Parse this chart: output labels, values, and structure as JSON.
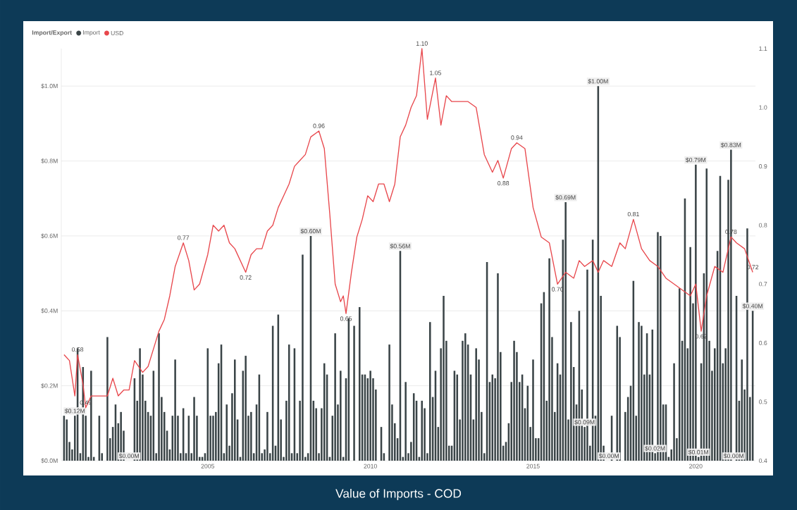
{
  "chart_data": {
    "type": "bar",
    "title": "Value of Imports - COD",
    "legend_title": "Import/Export",
    "legend": "top left",
    "grid": "y",
    "xlim": [
      "2000-07",
      "2021-11"
    ],
    "xticks": [
      "2005",
      "2010",
      "2015",
      "2020"
    ],
    "ylim": [
      0,
      1.1
    ],
    "yticks": [
      {
        "value": 0,
        "label": "$0.0M"
      },
      {
        "value": 0.2,
        "label": "$0.2M"
      },
      {
        "value": 0.4,
        "label": "$0.4M"
      },
      {
        "value": 0.6,
        "label": "$0.6M"
      },
      {
        "value": 0.8,
        "label": "$0.8M"
      },
      {
        "value": 1.0,
        "label": "$1.0M"
      }
    ],
    "y2lim": [
      0.4,
      1.1
    ],
    "y2ticks": [
      {
        "value": 0.4,
        "label": "0.4"
      },
      {
        "value": 0.5,
        "label": "0.5"
      },
      {
        "value": 0.6,
        "label": "0.6"
      },
      {
        "value": 0.7,
        "label": "0.7"
      },
      {
        "value": 0.8,
        "label": "0.8"
      },
      {
        "value": 0.9,
        "label": "0.9"
      },
      {
        "value": 1.0,
        "label": "1.0"
      },
      {
        "value": 1.1,
        "label": "1.1"
      }
    ],
    "x": [
      "2000-08",
      "2000-09",
      "2000-10",
      "2000-11",
      "2000-12",
      "2001-01",
      "2001-02",
      "2001-03",
      "2001-04",
      "2001-05",
      "2001-06",
      "2001-07",
      "2001-08",
      "2001-09",
      "2001-10",
      "2001-11",
      "2001-12",
      "2002-01",
      "2002-02",
      "2002-03",
      "2002-04",
      "2002-05",
      "2002-06",
      "2002-07",
      "2002-08",
      "2002-09",
      "2002-10",
      "2002-11",
      "2002-12",
      "2003-01",
      "2003-02",
      "2003-03",
      "2003-04",
      "2003-05",
      "2003-06",
      "2003-07",
      "2003-08",
      "2003-09",
      "2003-10",
      "2003-11",
      "2003-12",
      "2004-01",
      "2004-02",
      "2004-03",
      "2004-04",
      "2004-05",
      "2004-06",
      "2004-07",
      "2004-08",
      "2004-09",
      "2004-10",
      "2004-11",
      "2004-12",
      "2005-01",
      "2005-02",
      "2005-03",
      "2005-04",
      "2005-05",
      "2005-06",
      "2005-07",
      "2005-08",
      "2005-09",
      "2005-10",
      "2005-11",
      "2005-12",
      "2006-01",
      "2006-02",
      "2006-03",
      "2006-04",
      "2006-05",
      "2006-06",
      "2006-07",
      "2006-08",
      "2006-09",
      "2006-10",
      "2006-11",
      "2006-12",
      "2007-01",
      "2007-02",
      "2007-03",
      "2007-04",
      "2007-05",
      "2007-06",
      "2007-07",
      "2007-08",
      "2007-09",
      "2007-10",
      "2007-11",
      "2007-12",
      "2008-01",
      "2008-02",
      "2008-03",
      "2008-04",
      "2008-05",
      "2008-06",
      "2008-07",
      "2008-08",
      "2008-09",
      "2008-10",
      "2008-11",
      "2008-12",
      "2009-01",
      "2009-02",
      "2009-03",
      "2009-04",
      "2009-05",
      "2009-06",
      "2009-07",
      "2009-08",
      "2009-09",
      "2009-10",
      "2009-11",
      "2009-12",
      "2010-01",
      "2010-02",
      "2010-03",
      "2010-04",
      "2010-05",
      "2010-06",
      "2010-07",
      "2010-08",
      "2010-09",
      "2010-10",
      "2010-11",
      "2010-12",
      "2011-01",
      "2011-02",
      "2011-03",
      "2011-04",
      "2011-05",
      "2011-06",
      "2011-07",
      "2011-08",
      "2011-09",
      "2011-10",
      "2011-11",
      "2011-12",
      "2012-01",
      "2012-02",
      "2012-03",
      "2012-04",
      "2012-05",
      "2012-06",
      "2012-07",
      "2012-08",
      "2012-09",
      "2012-10",
      "2012-11",
      "2012-12",
      "2013-01",
      "2013-02",
      "2013-03",
      "2013-04",
      "2013-05",
      "2013-06",
      "2013-07",
      "2013-08",
      "2013-09",
      "2013-10",
      "2013-11",
      "2013-12",
      "2014-01",
      "2014-02",
      "2014-03",
      "2014-04",
      "2014-05",
      "2014-06",
      "2014-07",
      "2014-08",
      "2014-09",
      "2014-10",
      "2014-11",
      "2014-12",
      "2015-01",
      "2015-02",
      "2015-03",
      "2015-04",
      "2015-05",
      "2015-06",
      "2015-07",
      "2015-08",
      "2015-09",
      "2015-10",
      "2015-11",
      "2015-12",
      "2016-01",
      "2016-02",
      "2016-03",
      "2016-04",
      "2016-05",
      "2016-06",
      "2016-07",
      "2016-08",
      "2016-09",
      "2016-10",
      "2016-11",
      "2016-12",
      "2017-01",
      "2017-02",
      "2017-03",
      "2017-04",
      "2017-05",
      "2017-06",
      "2017-07",
      "2017-08",
      "2017-09",
      "2017-10",
      "2017-11",
      "2017-12",
      "2018-01",
      "2018-02",
      "2018-03",
      "2018-04",
      "2018-05",
      "2018-06",
      "2018-07",
      "2018-08",
      "2018-09",
      "2018-10",
      "2018-11",
      "2018-12",
      "2019-01",
      "2019-02",
      "2019-03",
      "2019-04",
      "2019-05",
      "2019-06",
      "2019-07",
      "2019-08",
      "2019-09",
      "2019-10",
      "2019-11",
      "2019-12",
      "2020-01",
      "2020-02",
      "2020-03",
      "2020-04",
      "2020-05",
      "2020-06",
      "2020-07",
      "2020-08",
      "2020-09",
      "2020-10",
      "2020-11",
      "2020-12",
      "2021-01",
      "2021-02",
      "2021-03",
      "2021-04",
      "2021-05",
      "2021-06",
      "2021-07",
      "2021-08",
      "2021-09",
      "2021-10"
    ],
    "series": [
      {
        "name": "Import",
        "color": "#3a4447",
        "values": [
          0.12,
          0.11,
          0.05,
          0.03,
          0.12,
          0.3,
          0.02,
          0.25,
          0.12,
          0.01,
          0.24,
          0.01,
          0.0,
          0.12,
          0.02,
          0.0,
          0.33,
          0.06,
          0.09,
          0.15,
          0.1,
          0.13,
          0.08,
          0.0,
          0.0,
          0.0,
          0.22,
          0.16,
          0.3,
          0.23,
          0.16,
          0.13,
          0.12,
          0.24,
          0.02,
          0.34,
          0.17,
          0.13,
          0.08,
          0.03,
          0.12,
          0.27,
          0.12,
          0.02,
          0.14,
          0.02,
          0.12,
          0.02,
          0.17,
          0.12,
          0.01,
          0.01,
          0.02,
          0.3,
          0.12,
          0.12,
          0.13,
          0.26,
          0.31,
          0.02,
          0.15,
          0.04,
          0.18,
          0.27,
          0.11,
          0.01,
          0.24,
          0.28,
          0.12,
          0.13,
          0.02,
          0.15,
          0.23,
          0.02,
          0.03,
          0.13,
          0.02,
          0.36,
          0.04,
          0.39,
          0.11,
          0.01,
          0.16,
          0.31,
          0.02,
          0.3,
          0.02,
          0.16,
          0.55,
          0.01,
          0.02,
          0.6,
          0.16,
          0.14,
          0.02,
          0.14,
          0.26,
          0.23,
          0.01,
          0.12,
          0.34,
          0.15,
          0.24,
          0.01,
          0.22,
          0.38,
          0.0,
          0.36,
          0.0,
          0.41,
          0.23,
          0.23,
          0.22,
          0.24,
          0.22,
          0.19,
          0.0,
          0.09,
          0.02,
          0.0,
          0.31,
          0.15,
          0.1,
          0.06,
          0.56,
          0.01,
          0.21,
          0.02,
          0.05,
          0.18,
          0.16,
          0.01,
          0.16,
          0.14,
          0.02,
          0.37,
          0.17,
          0.24,
          0.09,
          0.3,
          0.44,
          0.32,
          0.04,
          0.04,
          0.24,
          0.23,
          0.11,
          0.32,
          0.34,
          0.31,
          0.23,
          0.11,
          0.3,
          0.27,
          0.13,
          0.02,
          0.53,
          0.21,
          0.23,
          0.22,
          0.5,
          0.29,
          0.04,
          0.05,
          0.1,
          0.21,
          0.32,
          0.29,
          0.21,
          0.23,
          0.14,
          0.2,
          0.09,
          0.27,
          0.06,
          0.06,
          0.42,
          0.45,
          0.16,
          0.54,
          0.33,
          0.13,
          0.26,
          0.23,
          0.59,
          0.69,
          0.11,
          0.37,
          0.25,
          0.15,
          0.4,
          0.19,
          0.09,
          0.51,
          0.04,
          0.59,
          0.12,
          1.0,
          0.44,
          0.04,
          0.0,
          0.0,
          0.12,
          0.0,
          0.36,
          0.33,
          0.0,
          0.13,
          0.17,
          0.2,
          0.48,
          0.12,
          0.37,
          0.36,
          0.23,
          0.34,
          0.23,
          0.35,
          0.02,
          0.61,
          0.6,
          0.15,
          0.15,
          0.01,
          0.03,
          0.26,
          0.06,
          0.46,
          0.32,
          0.7,
          0.3,
          0.57,
          0.42,
          0.79,
          0.01,
          0.26,
          0.5,
          0.78,
          0.32,
          0.24,
          0.3,
          0.56,
          0.76,
          0.26,
          0.3,
          0.75,
          0.83,
          0.0,
          0.44,
          0.16,
          0.27,
          0.19,
          0.62,
          0.17,
          0.4
        ],
        "value_labels": [
          null,
          null,
          null,
          null,
          "$0.12M",
          null,
          null,
          null,
          null,
          null,
          null,
          null,
          null,
          null,
          null,
          null,
          null,
          null,
          null,
          null,
          null,
          null,
          null,
          null,
          "$0.00M",
          null,
          null,
          null,
          null,
          null,
          null,
          null,
          null,
          null,
          null,
          null,
          null,
          null,
          null,
          null,
          null,
          null,
          null,
          null,
          null,
          null,
          null,
          null,
          null,
          null,
          null,
          null,
          null,
          null,
          null,
          null,
          null,
          null,
          null,
          null,
          null,
          null,
          null,
          null,
          null,
          null,
          null,
          null,
          null,
          null,
          null,
          null,
          null,
          null,
          null,
          null,
          null,
          null,
          null,
          null,
          null,
          null,
          null,
          null,
          null,
          null,
          null,
          null,
          null,
          null,
          null,
          "$0.60M",
          null,
          null,
          null,
          null,
          null,
          null,
          null,
          null,
          null,
          null,
          null,
          null,
          null,
          null,
          null,
          null,
          null,
          null,
          null,
          null,
          null,
          null,
          null,
          null,
          null,
          null,
          null,
          null,
          null,
          null,
          null,
          null,
          "$0.56M",
          null,
          null,
          null,
          null,
          null,
          null,
          null,
          null,
          null,
          null,
          null,
          null,
          null,
          null,
          null,
          null,
          null,
          null,
          null,
          null,
          null,
          null,
          null,
          null,
          null,
          null,
          null,
          null,
          null,
          null,
          null,
          null,
          null,
          null,
          null,
          null,
          null,
          null,
          null,
          null,
          null,
          null,
          null,
          null,
          null,
          null,
          null,
          null,
          null,
          null,
          null,
          null,
          null,
          null,
          null,
          null,
          null,
          null,
          null,
          null,
          "$0.69M",
          null,
          null,
          null,
          null,
          null,
          null,
          "$0.09M",
          null,
          null,
          null,
          null,
          "$1.00M",
          null,
          null,
          null,
          "$0.00M",
          null,
          null,
          null,
          null,
          null,
          null,
          null,
          null,
          null,
          null,
          null,
          null,
          null,
          null,
          null,
          null,
          "$0.02M",
          null,
          null,
          null,
          null,
          null,
          null,
          null,
          null,
          null,
          null,
          null,
          null,
          null,
          null,
          "$0.79M",
          "$0.01M",
          null,
          null,
          null,
          null,
          null,
          null,
          null,
          null,
          null,
          null,
          null,
          "$0.83M",
          "$0.00M",
          null,
          null,
          null,
          null,
          null,
          null,
          "$0.40M"
        ]
      },
      {
        "name": "USD",
        "type": "line",
        "axis": "y2",
        "color": "#e8474c",
        "x": [
          "2000-08",
          "2000-10",
          "2000-12",
          "2001-01",
          "2001-03",
          "2001-04",
          "2001-06",
          "2001-09",
          "2001-12",
          "2002-02",
          "2002-04",
          "2002-06",
          "2002-08",
          "2002-10",
          "2003-01",
          "2003-03",
          "2003-05",
          "2003-07",
          "2003-09",
          "2003-11",
          "2004-01",
          "2004-04",
          "2004-06",
          "2004-08",
          "2004-10",
          "2005-01",
          "2005-03",
          "2005-05",
          "2005-07",
          "2005-09",
          "2005-11",
          "2006-01",
          "2006-03",
          "2006-05",
          "2006-07",
          "2006-09",
          "2006-11",
          "2007-01",
          "2007-03",
          "2007-05",
          "2007-07",
          "2007-09",
          "2007-11",
          "2008-01",
          "2008-03",
          "2008-06",
          "2008-08",
          "2008-10",
          "2008-12",
          "2009-02",
          "2009-03",
          "2009-04",
          "2009-06",
          "2009-08",
          "2009-10",
          "2009-12",
          "2010-02",
          "2010-04",
          "2010-06",
          "2010-08",
          "2010-10",
          "2010-12",
          "2011-02",
          "2011-04",
          "2011-06",
          "2011-08",
          "2011-10",
          "2012-01",
          "2012-03",
          "2012-05",
          "2012-07",
          "2012-10",
          "2013-01",
          "2013-04",
          "2013-07",
          "2013-10",
          "2013-12",
          "2014-02",
          "2014-05",
          "2014-07",
          "2014-10",
          "2015-01",
          "2015-04",
          "2015-07",
          "2015-10",
          "2016-01",
          "2016-04",
          "2016-06",
          "2016-08",
          "2016-11",
          "2017-01",
          "2017-03",
          "2017-06",
          "2017-09",
          "2017-11",
          "2018-02",
          "2018-05",
          "2018-08",
          "2018-11",
          "2019-02",
          "2019-05",
          "2019-08",
          "2019-11",
          "2020-01",
          "2020-03",
          "2020-05",
          "2020-08",
          "2020-11",
          "2021-02",
          "2021-04",
          "2021-07",
          "2021-10"
        ],
        "values": [
          0.58,
          0.57,
          0.51,
          0.58,
          0.53,
          0.49,
          0.51,
          0.51,
          0.51,
          0.54,
          0.51,
          0.52,
          0.52,
          0.57,
          0.55,
          0.56,
          0.59,
          0.62,
          0.64,
          0.68,
          0.73,
          0.77,
          0.74,
          0.69,
          0.7,
          0.75,
          0.8,
          0.79,
          0.8,
          0.77,
          0.76,
          0.74,
          0.72,
          0.75,
          0.76,
          0.76,
          0.79,
          0.8,
          0.83,
          0.85,
          0.87,
          0.9,
          0.91,
          0.92,
          0.95,
          0.96,
          0.93,
          0.82,
          0.7,
          0.67,
          0.68,
          0.65,
          0.72,
          0.78,
          0.81,
          0.85,
          0.84,
          0.87,
          0.87,
          0.84,
          0.87,
          0.95,
          0.97,
          1.0,
          1.02,
          1.1,
          0.98,
          1.05,
          0.97,
          1.02,
          1.01,
          1.01,
          1.01,
          1.0,
          0.92,
          0.89,
          0.91,
          0.88,
          0.93,
          0.94,
          0.93,
          0.83,
          0.78,
          0.77,
          0.7,
          0.72,
          0.71,
          0.74,
          0.73,
          0.74,
          0.72,
          0.74,
          0.73,
          0.77,
          0.76,
          0.81,
          0.76,
          0.74,
          0.73,
          0.71,
          0.7,
          0.69,
          0.68,
          0.7,
          0.62,
          0.68,
          0.73,
          0.72,
          0.78,
          0.77,
          0.76,
          0.72
        ],
        "value_labels": [
          null,
          null,
          null,
          "0.58",
          null,
          "0.49",
          null,
          null,
          null,
          null,
          null,
          null,
          null,
          null,
          null,
          null,
          null,
          null,
          null,
          null,
          null,
          "0.77",
          null,
          null,
          null,
          null,
          null,
          null,
          null,
          null,
          null,
          null,
          "0.72",
          null,
          null,
          null,
          null,
          null,
          null,
          null,
          null,
          null,
          null,
          null,
          null,
          "0.96",
          null,
          null,
          null,
          null,
          null,
          "0.65",
          null,
          null,
          null,
          null,
          null,
          null,
          null,
          null,
          null,
          null,
          null,
          null,
          null,
          "1.10",
          null,
          "1.05",
          null,
          null,
          null,
          null,
          null,
          null,
          null,
          null,
          null,
          "0.88",
          null,
          "0.94",
          null,
          null,
          null,
          null,
          "0.70",
          null,
          null,
          null,
          null,
          null,
          null,
          null,
          null,
          null,
          null,
          "0.81",
          null,
          null,
          null,
          null,
          null,
          null,
          null,
          null,
          "0.62",
          null,
          null,
          null,
          "0.78",
          null,
          null,
          "0.72"
        ]
      }
    ]
  }
}
